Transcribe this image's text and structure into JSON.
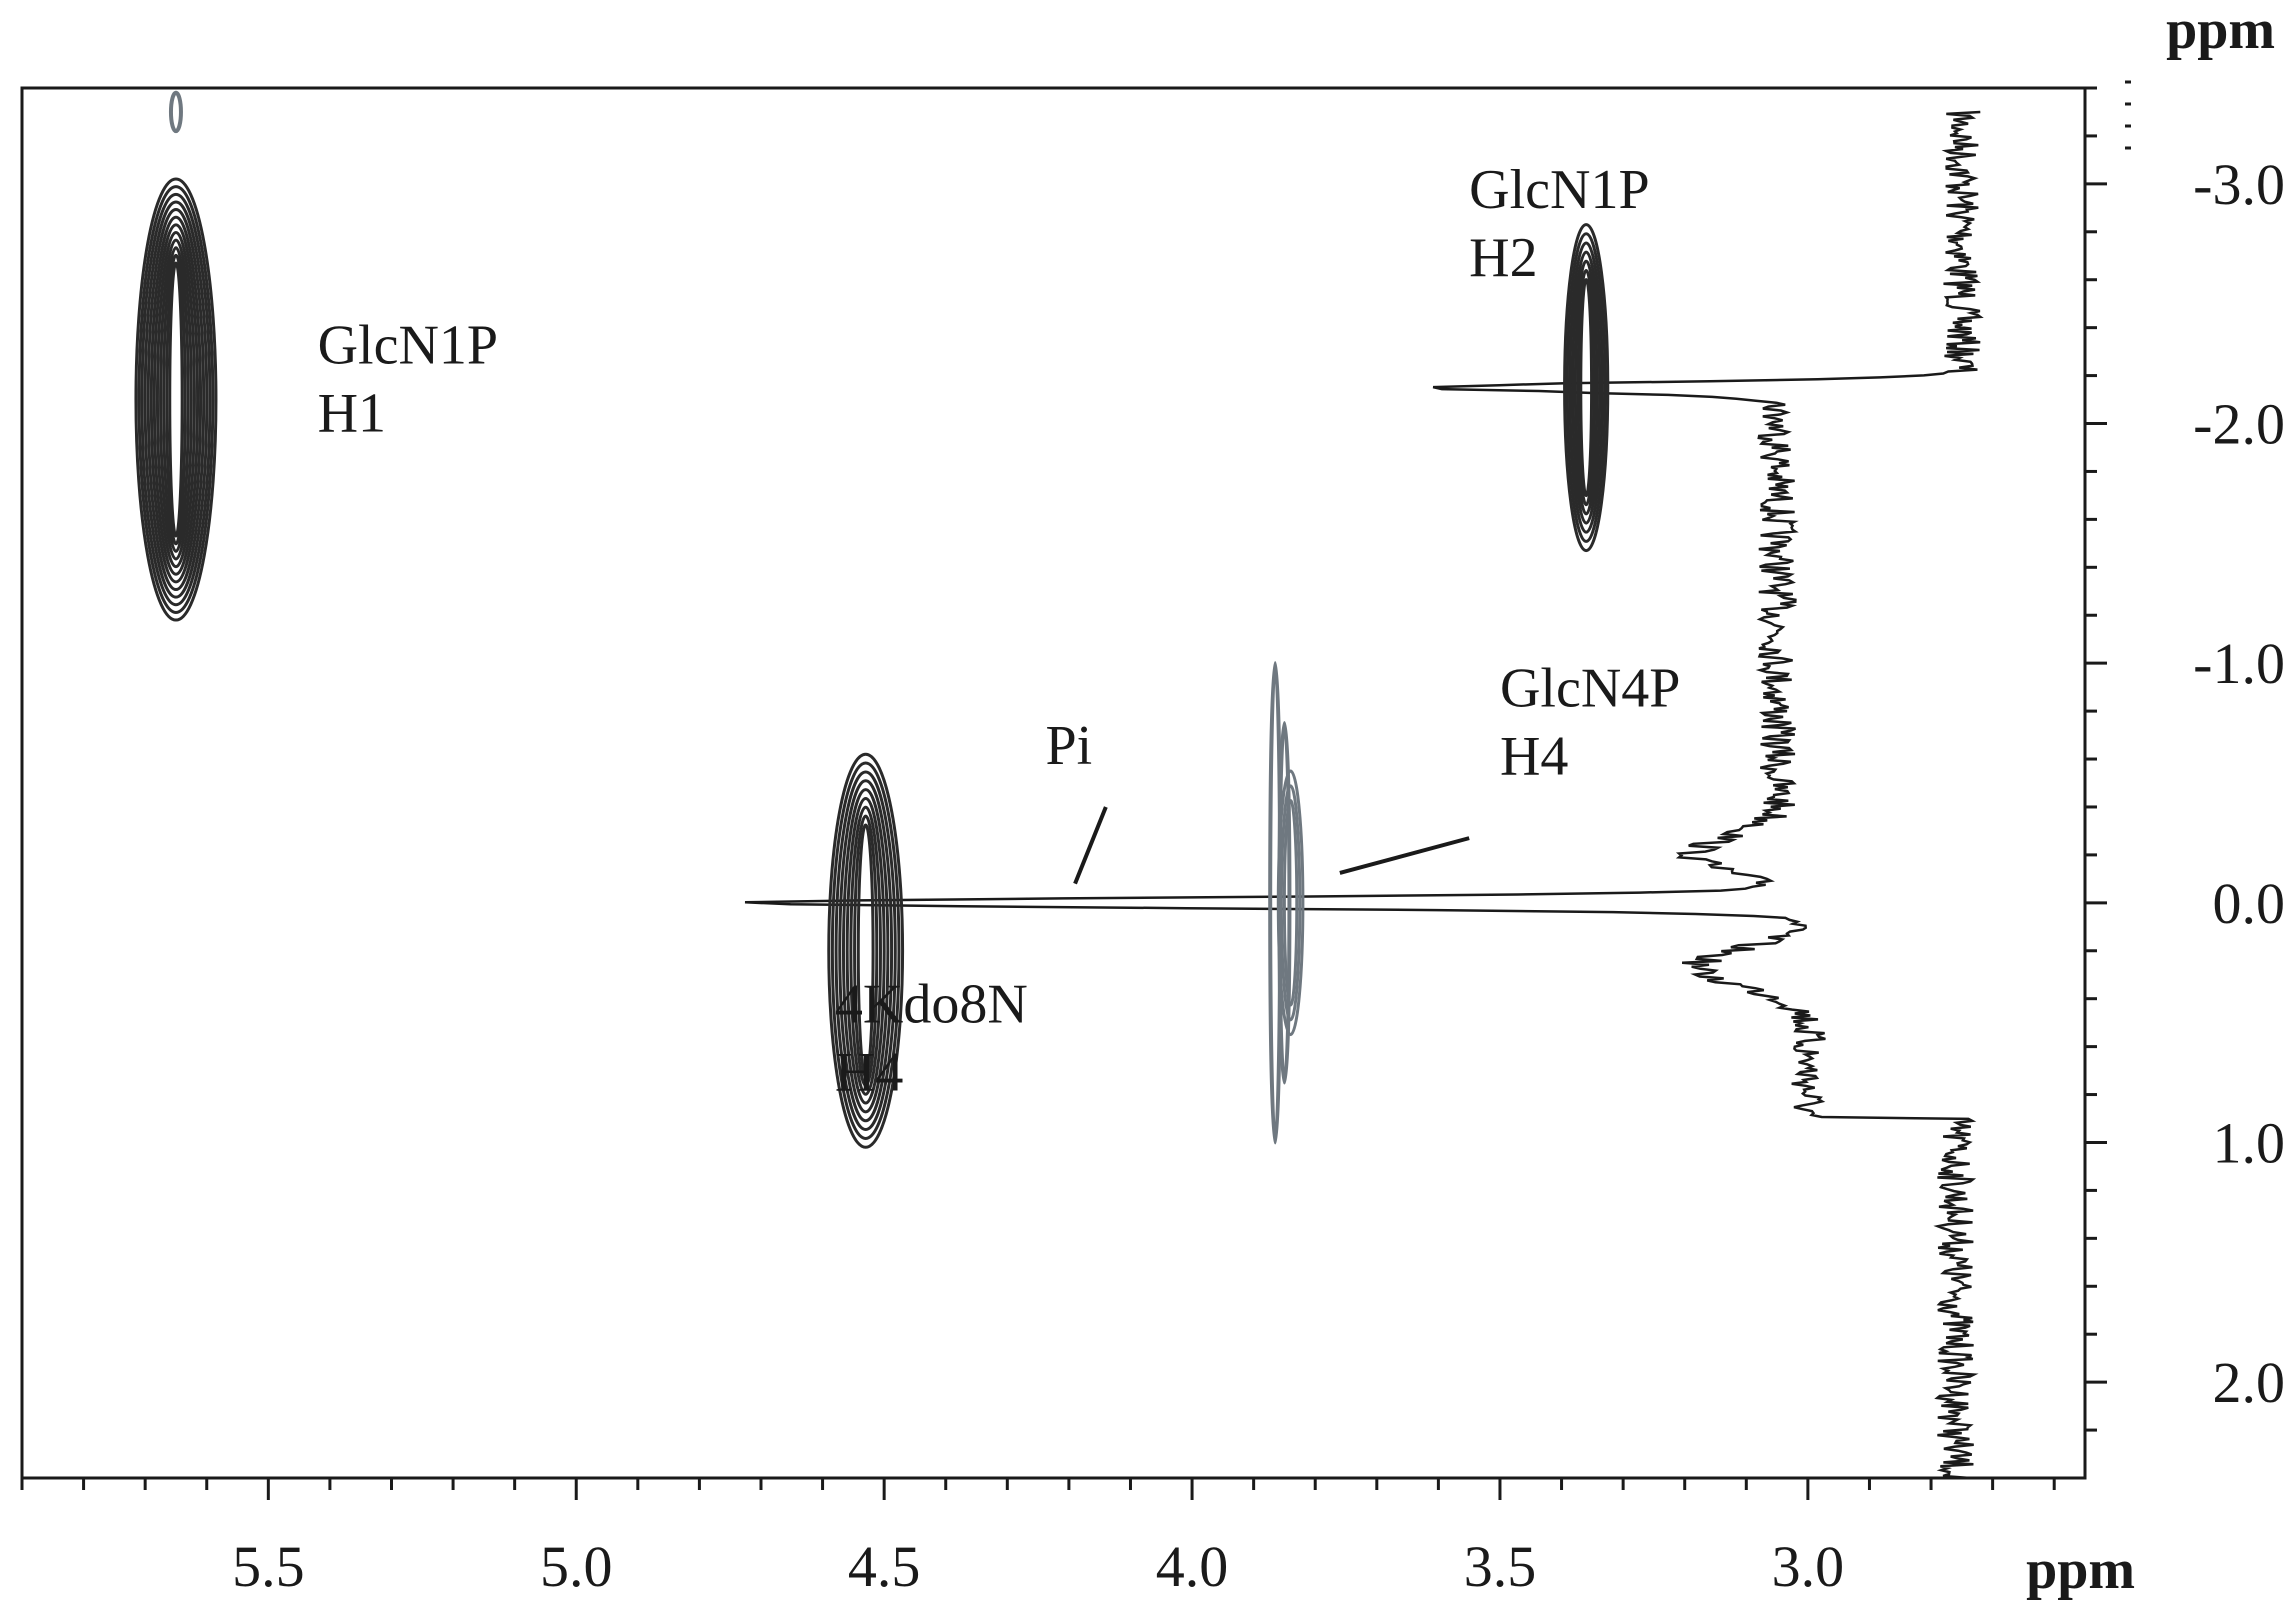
{
  "chart_data": {
    "type": "2D NMR correlation spectrum (1H-31P contour plot with 31P projection)",
    "x_axis": {
      "label": "ppm",
      "direction": "reversed",
      "range": [
        5.9,
        2.55
      ],
      "major_ticks": [
        5.5,
        5.0,
        4.5,
        4.0,
        3.5,
        3.0
      ],
      "tick_labels": [
        "5.5",
        "5.0",
        "4.5",
        "4.0",
        "3.5",
        "3.0"
      ],
      "minor_step": 0.1
    },
    "y_axis": {
      "label": "ppm",
      "side": "right",
      "direction": "increasing downward",
      "range": [
        -3.4,
        2.4
      ],
      "major_ticks": [
        -3.0,
        -2.0,
        -1.0,
        0.0,
        1.0,
        2.0
      ],
      "tick_labels": [
        "-3.0",
        "-2.0",
        "-1.0",
        "0.0",
        "1.0",
        "2.0"
      ],
      "minor_step": 0.2
    },
    "grid": false,
    "cross_peaks": [
      {
        "id": "glcn1p-h1",
        "label_lines": [
          "GlcN1P",
          "H1"
        ],
        "x": 5.65,
        "y": -2.1,
        "x_half_width": 0.065,
        "y_half_height": 0.92,
        "levels": 12,
        "color": "#2a2a2a",
        "label_at": [
          5.42,
          -2.25
        ]
      },
      {
        "id": "glcn1p-h2",
        "label_lines": [
          "GlcN1P",
          "H2"
        ],
        "x": 3.36,
        "y": -2.15,
        "x_half_width": 0.035,
        "y_half_height": 0.68,
        "levels": 7,
        "color": "#2a2a2a",
        "label_at": [
          3.55,
          -2.9
        ]
      },
      {
        "id": "kdo-h4",
        "label_lines": [
          "4Kdo8N",
          "H4"
        ],
        "x": 4.53,
        "y": 0.2,
        "x_half_width": 0.06,
        "y_half_height": 0.82,
        "levels": 9,
        "color": "#2a2a2a",
        "label_at": [
          4.58,
          0.5
        ]
      },
      {
        "id": "glcn4p-h4",
        "label_lines": [
          "GlcN4P",
          "H4"
        ],
        "x": 3.84,
        "y": 0.0,
        "x_half_width": 0.02,
        "y_half_height": 0.55,
        "levels": 3,
        "color": "#6f7880",
        "label_at": [
          3.5,
          -0.82
        ]
      }
    ],
    "minor_peaks": [
      {
        "x": 5.65,
        "y": -3.3,
        "half_height": 0.08,
        "color": "#6f7880"
      },
      {
        "x": 3.865,
        "y": 0.0,
        "half_height": 1.0,
        "color": "#6f7880"
      },
      {
        "x": 3.85,
        "y": 0.0,
        "half_height": 0.75,
        "color": "#6f7880"
      }
    ],
    "annotations": [
      {
        "text": "Pi",
        "x": 4.2,
        "y": -0.58,
        "leader": [
          [
            4.14,
            -0.4
          ],
          [
            4.19,
            -0.08
          ]
        ]
      }
    ],
    "glcn4p_leader": [
      [
        3.55,
        -0.27
      ],
      [
        3.76,
        -0.25
      ]
    ],
    "projection": {
      "description": "31P 1D projection trace drawn along the right side",
      "baseline_x": 2.75,
      "peaks": [
        {
          "y": -2.15,
          "tip_x": 3.6,
          "width": 0.06
        },
        {
          "y": 0.0,
          "tip_x": 4.7,
          "width": 0.06
        },
        {
          "y": 0.27,
          "tip_x": 3.2,
          "width": 0.22
        },
        {
          "y": -0.2,
          "tip_x": 3.2,
          "width": 0.22
        }
      ],
      "broad_regions": [
        {
          "from_y": -3.3,
          "to_y": -2.2,
          "x": 2.75
        },
        {
          "from_y": -2.1,
          "to_y": -0.5,
          "x": 3.05
        },
        {
          "from_y": 0.3,
          "to_y": 0.9,
          "x": 3.0
        },
        {
          "from_y": 0.9,
          "to_y": 2.4,
          "x": 2.76
        }
      ]
    }
  }
}
